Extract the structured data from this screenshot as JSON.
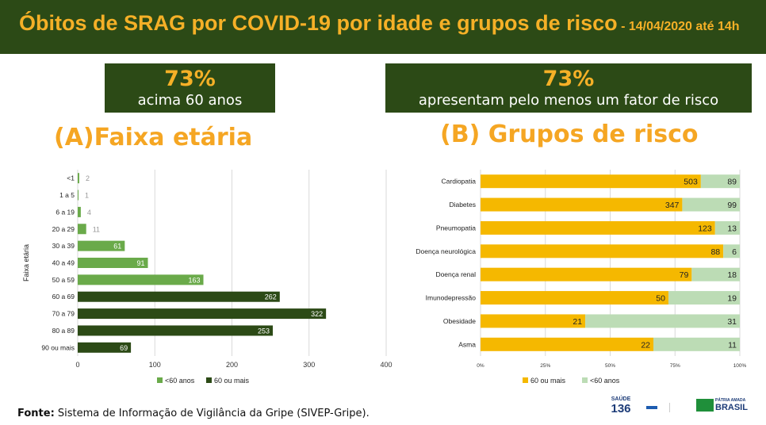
{
  "header": {
    "title": "Óbitos de SRAG por COVID-19 por idade e grupos de risco",
    "date": " - 14/04/2020 até 14h"
  },
  "stats": [
    {
      "pct": "73%",
      "text": "acima 60 anos"
    },
    {
      "pct": "73%",
      "text": "apresentam pelo menos um fator de risco"
    }
  ],
  "section_titles": {
    "a": "(A)Faixa etária",
    "b": "(B) Grupos de risco"
  },
  "colors": {
    "dark_green": "#2c4a16",
    "light_green": "#6aaa4a",
    "yellow": "#f5b800",
    "pale_green": "#bcdcb5",
    "orange_title": "#f5a623"
  },
  "chart_data": [
    {
      "type": "bar",
      "orientation": "horizontal",
      "categories": [
        "<1",
        "1 a 5",
        "6 a 19",
        "20 a 29",
        "30 a 39",
        "40 a 49",
        "50 a 59",
        "60 a 69",
        "70 a 79",
        "80 a 89",
        "90 ou mais"
      ],
      "series": [
        {
          "name": "<60 anos",
          "values": [
            2,
            1,
            4,
            11,
            61,
            91,
            163,
            null,
            null,
            null,
            null
          ]
        },
        {
          "name": "60 ou mais",
          "values": [
            null,
            null,
            null,
            null,
            null,
            null,
            null,
            262,
            322,
            253,
            69
          ]
        }
      ],
      "ylabel": "Faixa etária",
      "xlim": [
        0,
        400
      ],
      "xticks": [
        "0",
        "100",
        "200",
        "300",
        "400"
      ],
      "grid": true,
      "legend": "bottom"
    },
    {
      "type": "bar",
      "orientation": "horizontal",
      "stacked": "percent",
      "categories": [
        "Cardiopatia",
        "Diabetes",
        "Pneumopatia",
        "Doença neurológica",
        "Doença renal",
        "Imunodepressão",
        "Obesidade",
        "Asma"
      ],
      "series": [
        {
          "name": "60 ou mais",
          "values": [
            503,
            347,
            123,
            88,
            79,
            50,
            21,
            22
          ]
        },
        {
          "name": "<60 anos",
          "values": [
            89,
            99,
            13,
            6,
            18,
            19,
            31,
            11
          ]
        }
      ],
      "xticks": [
        "0%",
        "25%",
        "50%",
        "75%",
        "100%"
      ],
      "grid": true,
      "legend": "bottom"
    }
  ],
  "footer": {
    "label": "Fonte:",
    "text": " Sistema de Informação de Vigilância da Gripe (SIVEP-Gripe)."
  },
  "logos": {
    "saude": "SAÚDE",
    "num": "136",
    "brasil": "BRASIL",
    "patria": "PÁTRIA AMADA"
  }
}
